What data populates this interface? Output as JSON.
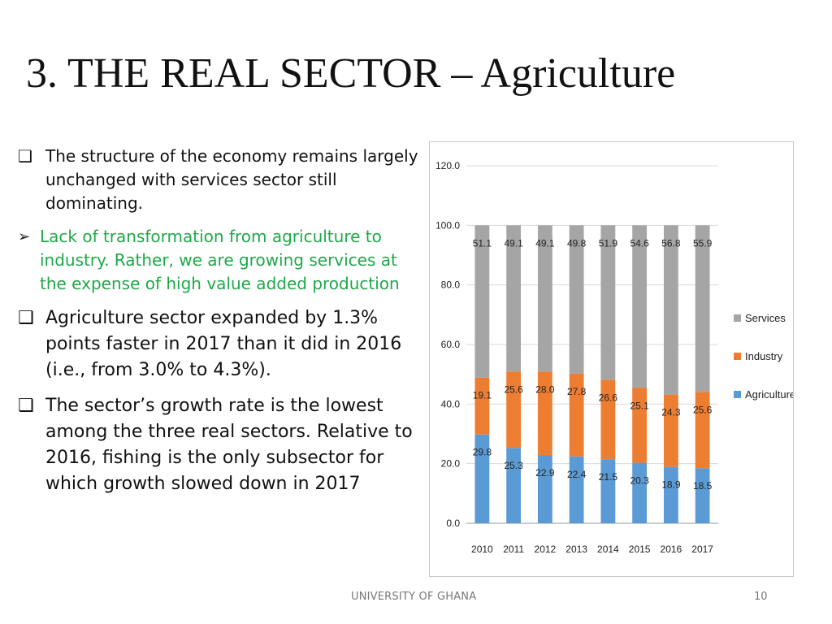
{
  "slide": {
    "title": "3. THE REAL SECTOR – Agriculture",
    "footer": "UNIVERSITY OF GHANA",
    "page_number": "10"
  },
  "bullets": [
    {
      "marker": "❑",
      "text": " The structure of the economy remains largely unchanged with services sector still dominating."
    },
    {
      "marker": "➢",
      "text": "Lack of transformation from agriculture to industry. Rather, we are growing services at the expense of high value added production"
    },
    {
      "marker": "❑",
      "text": "Agriculture sector expanded by 1.3% points faster in 2017 than it did in 2016 (i.e., from 3.0% to 4.3%)."
    },
    {
      "marker": "❑",
      "text": "The sector’s growth rate is the lowest among the three real sectors. Relative to 2016, fishing is the only subsector for which growth slowed down in 2017"
    }
  ],
  "colors": {
    "agriculture": "#5b9bd5",
    "industry": "#ed7d31",
    "services": "#a5a5a5",
    "bullet_green": "#1fa84a"
  },
  "chart_data": {
    "type": "bar",
    "stacked": true,
    "categories": [
      "2010",
      "2011",
      "2012",
      "2013",
      "2014",
      "2015",
      "2016",
      "2017"
    ],
    "series": [
      {
        "name": "Agriculture",
        "values": [
          29.8,
          25.3,
          22.9,
          22.4,
          21.5,
          20.3,
          18.9,
          18.5
        ]
      },
      {
        "name": "Industry",
        "values": [
          19.1,
          25.6,
          28.0,
          27.8,
          26.6,
          25.1,
          24.3,
          25.6
        ]
      },
      {
        "name": "Services",
        "values": [
          51.1,
          49.1,
          49.1,
          49.8,
          51.9,
          54.6,
          56.8,
          55.9
        ]
      }
    ],
    "yticks": [
      "0.0",
      "20.0",
      "40.0",
      "60.0",
      "80.0",
      "100.0",
      "120.0"
    ],
    "ylim": [
      0,
      120
    ],
    "grid": true,
    "legend": "right"
  }
}
